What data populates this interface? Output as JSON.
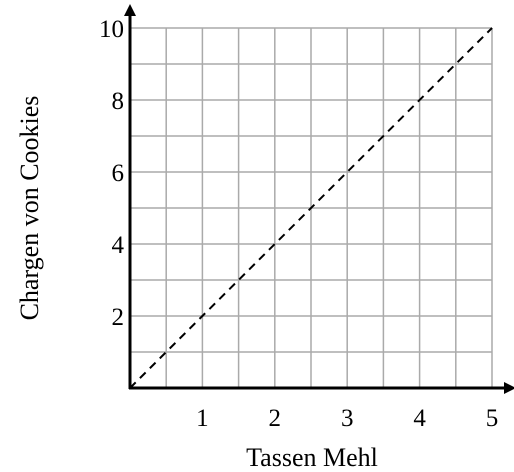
{
  "chart_data": {
    "type": "line",
    "title": "",
    "xlabel": "Tassen Mehl",
    "ylabel": "Chargen von Cookies",
    "xlim": [
      0,
      5
    ],
    "ylim": [
      0,
      10
    ],
    "x_ticks": [
      1,
      2,
      3,
      4,
      5
    ],
    "x_tick_labels": [
      "1",
      "2",
      "3",
      "4",
      "5"
    ],
    "y_ticks": [
      2,
      4,
      6,
      8,
      10
    ],
    "y_tick_labels": [
      "2",
      "4",
      "6",
      "8",
      "10"
    ],
    "grid": true,
    "grid_step": {
      "x": 0.5,
      "y": 1
    },
    "series": [
      {
        "line_style": "dashed",
        "x": [
          0,
          5
        ],
        "y": [
          0,
          10
        ]
      }
    ],
    "colors": {
      "grid": "#aaaaaa",
      "axis": "#000000",
      "line": "#000000"
    }
  }
}
